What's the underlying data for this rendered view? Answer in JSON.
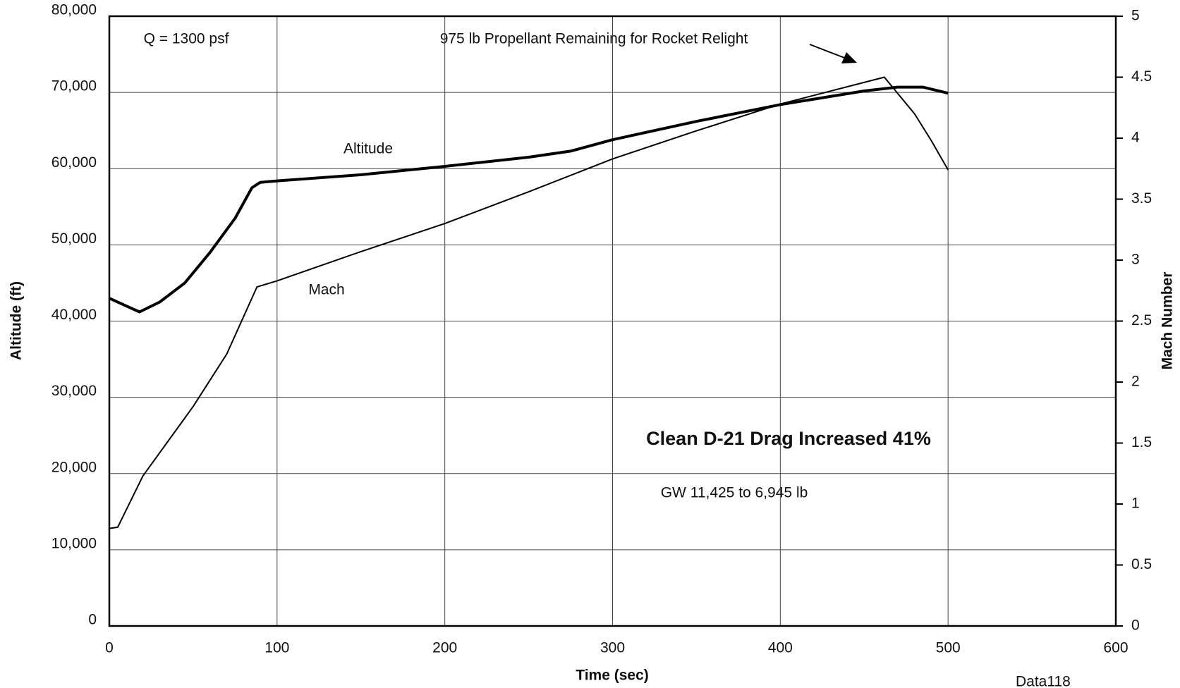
{
  "chart_data": {
    "type": "line",
    "x_label": "Time (sec)",
    "y_label": "Altitude (ft)",
    "y2_label": "Mach Number",
    "annotations": [
      "Q = 1300 psf",
      "975 lb Propellant Remaining for Rocket Relight",
      "Clean D-21 Drag Increased 41%",
      "GW 11,425 to 6,945 lb",
      "Data118"
    ],
    "xlim": [
      0,
      600
    ],
    "xticks": [
      0,
      100,
      200,
      300,
      400,
      500,
      600
    ],
    "ylim": [
      0,
      80000
    ],
    "yticks": [
      0,
      {
        "value": 10000,
        "label": "10,000"
      },
      {
        "value": 20000,
        "label": "20,000"
      },
      {
        "value": 30000,
        "label": "30,000"
      },
      {
        "value": 40000,
        "label": "40,000"
      },
      {
        "value": 50000,
        "label": "50,000"
      },
      {
        "value": 60000,
        "label": "60,000"
      },
      {
        "value": 70000,
        "label": "70,000"
      },
      {
        "value": 80000,
        "label": "80,000"
      }
    ],
    "y2lim": [
      0,
      5
    ],
    "y2ticks": [
      0,
      0.5,
      1,
      1.5,
      2,
      2.5,
      3,
      3.5,
      4,
      4.5,
      5
    ],
    "grid": true,
    "series": [
      {
        "name": "Altitude",
        "color": "#000000",
        "x": [
          0,
          10,
          18,
          30,
          45,
          60,
          75,
          85,
          90,
          100,
          150,
          200,
          250,
          275,
          300,
          350,
          400,
          450,
          470,
          485,
          500
        ],
        "values": [
          43000,
          42000,
          41200,
          42500,
          45000,
          49000,
          53500,
          57500,
          58200,
          58400,
          59200,
          60300,
          61500,
          62300,
          63800,
          66200,
          68400,
          70200,
          70700,
          70700,
          69900
        ]
      },
      {
        "name": "Mach",
        "color": "#000000",
        "axis": "y2",
        "x": [
          0,
          5,
          20,
          50,
          70,
          88,
          100,
          150,
          200,
          250,
          300,
          350,
          400,
          462,
          480,
          490,
          500
        ],
        "values": [
          0.8,
          0.81,
          1.23,
          1.8,
          2.23,
          2.78,
          2.83,
          3.07,
          3.3,
          3.56,
          3.83,
          4.06,
          4.28,
          4.5,
          4.2,
          3.98,
          3.74
        ]
      }
    ]
  }
}
